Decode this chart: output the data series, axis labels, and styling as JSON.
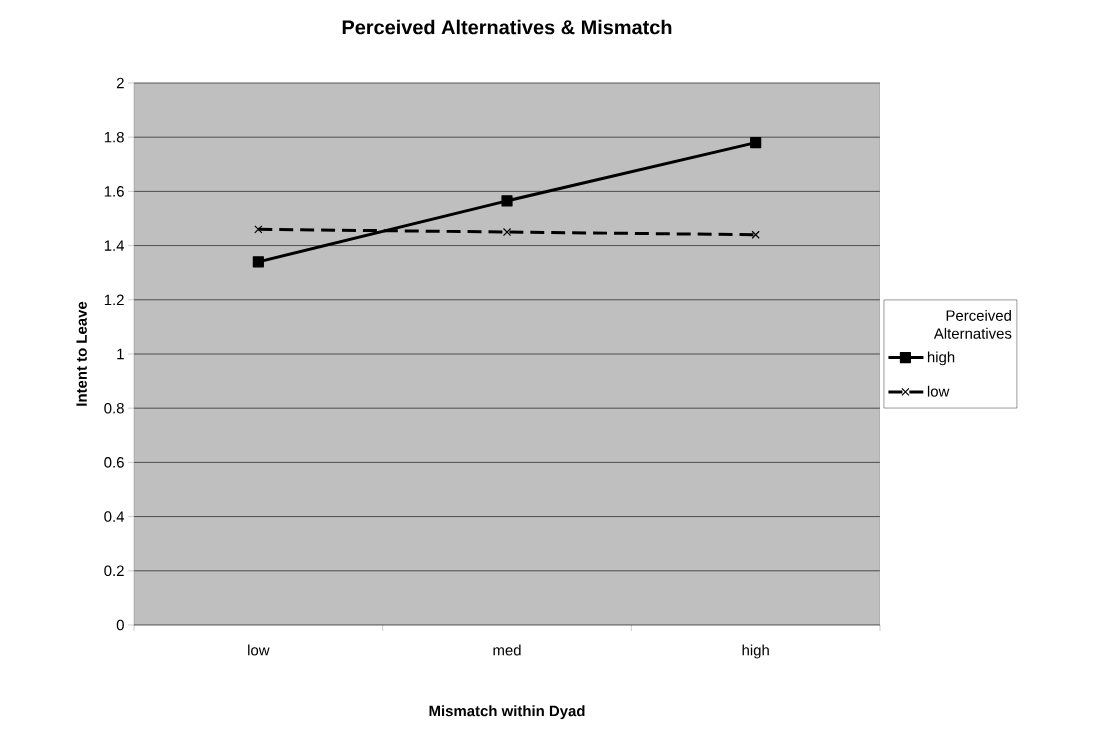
{
  "chart_data": {
    "type": "line",
    "title": "Perceived Alternatives & Mismatch",
    "xlabel": "Mismatch within Dyad",
    "ylabel": "Intent to Leave",
    "legend_title": "Perceived Alternatives",
    "categories": [
      "low",
      "med",
      "high"
    ],
    "series": [
      {
        "name": "high",
        "color": "#000000",
        "values": [
          1.34,
          1.565,
          1.78
        ],
        "marker": "square",
        "line_style": "solid"
      },
      {
        "name": "low",
        "color": "#000000",
        "values": [
          1.46,
          1.45,
          1.44
        ],
        "marker": "cross",
        "line_style": "dashed"
      }
    ],
    "ylim": [
      0,
      2
    ],
    "yticks": [
      0,
      0.2,
      0.4,
      0.6,
      0.8,
      1,
      1.2,
      1.4,
      1.6,
      1.8,
      2
    ],
    "grid": "y",
    "legend": "right"
  }
}
